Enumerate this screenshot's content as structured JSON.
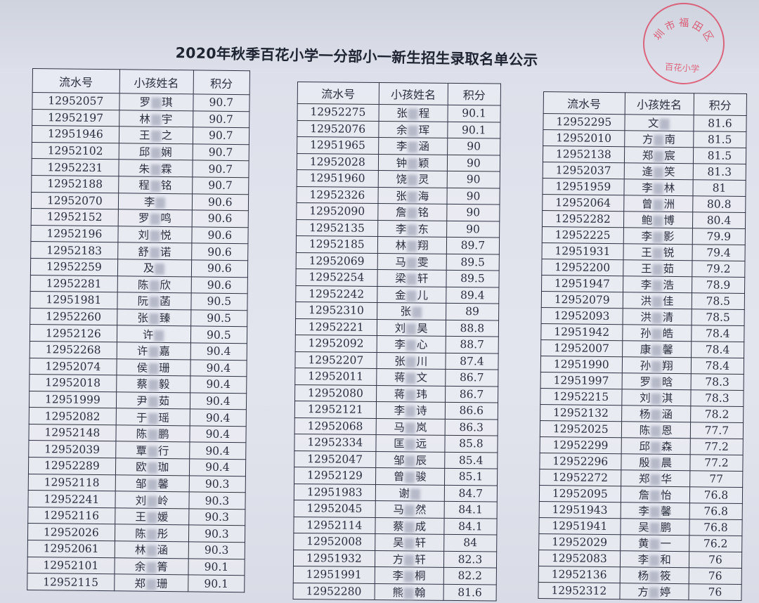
{
  "title": "2020年秋季百花小学一分部小一新生招生录取名单公示",
  "stamp": {
    "top_text": "圳市福田区",
    "bottom_text": "百花小学",
    "color": "#dc3c5a"
  },
  "headers": [
    "流水号",
    "小孩姓名",
    "积分"
  ],
  "tables": [
    {
      "rows": [
        [
          "12952057",
          "罗",
          "琪",
          "90.7"
        ],
        [
          "12952197",
          "林",
          "宇",
          "90.7"
        ],
        [
          "12951946",
          "王",
          "之",
          "90.7"
        ],
        [
          "12952102",
          "邱",
          "娴",
          "90.7"
        ],
        [
          "12952231",
          "朱",
          "霖",
          "90.7"
        ],
        [
          "12952188",
          "程",
          "铭",
          "90.7"
        ],
        [
          "12952070",
          "李",
          "",
          "90.6"
        ],
        [
          "12952152",
          "罗",
          "鸣",
          "90.6"
        ],
        [
          "12952196",
          "刘",
          "悦",
          "90.6"
        ],
        [
          "12952183",
          "舒",
          "诺",
          "90.6"
        ],
        [
          "12952259",
          "及",
          "",
          "90.6"
        ],
        [
          "12952281",
          "陈",
          "欣",
          "90.6"
        ],
        [
          "12951981",
          "阮",
          "菡",
          "90.5"
        ],
        [
          "12952260",
          "张",
          "臻",
          "90.5"
        ],
        [
          "12952126",
          "许",
          "",
          "90.5"
        ],
        [
          "12952268",
          "许",
          "嘉",
          "90.4"
        ],
        [
          "12952074",
          "侯",
          "珊",
          "90.4"
        ],
        [
          "12952018",
          "蔡",
          "毅",
          "90.4"
        ],
        [
          "12951999",
          "尹",
          "茹",
          "90.4"
        ],
        [
          "12952082",
          "于",
          "瑶",
          "90.4"
        ],
        [
          "12952148",
          "陈",
          "鹏",
          "90.4"
        ],
        [
          "12952039",
          "覃",
          "行",
          "90.4"
        ],
        [
          "12952289",
          "欧",
          "珈",
          "90.4"
        ],
        [
          "12952118",
          "邹",
          "馨",
          "90.3"
        ],
        [
          "12952241",
          "刘",
          "岭",
          "90.3"
        ],
        [
          "12952116",
          "王",
          "媛",
          "90.3"
        ],
        [
          "12952026",
          "陈",
          "彤",
          "90.3"
        ],
        [
          "12952061",
          "林",
          "涵",
          "90.3"
        ],
        [
          "12952101",
          "余",
          "箐",
          "90.1"
        ],
        [
          "12952115",
          "郑",
          "珊",
          "90.1"
        ]
      ]
    },
    {
      "rows": [
        [
          "12952275",
          "张",
          "程",
          "90.1"
        ],
        [
          "12952076",
          "余",
          "珲",
          "90.1"
        ],
        [
          "12951965",
          "李",
          "涵",
          "90"
        ],
        [
          "12952028",
          "钟",
          "颖",
          "90"
        ],
        [
          "12951960",
          "饶",
          "灵",
          "90"
        ],
        [
          "12952326",
          "张",
          "海",
          "90"
        ],
        [
          "12952090",
          "詹",
          "铭",
          "90"
        ],
        [
          "12952135",
          "李",
          "东",
          "90"
        ],
        [
          "12952185",
          "林",
          "翔",
          "89.7"
        ],
        [
          "12952069",
          "马",
          "雯",
          "89.5"
        ],
        [
          "12952254",
          "梁",
          "轩",
          "89.5"
        ],
        [
          "12952242",
          "金",
          "儿",
          "89.4"
        ],
        [
          "12952310",
          "张",
          "",
          "89"
        ],
        [
          "12952221",
          "刘",
          "昊",
          "88.8"
        ],
        [
          "12952092",
          "李",
          "心",
          "88.7"
        ],
        [
          "12952207",
          "张",
          "川",
          "87.4"
        ],
        [
          "12952011",
          "蒋",
          "文",
          "86.7"
        ],
        [
          "12952080",
          "蒋",
          "玮",
          "86.7"
        ],
        [
          "12952121",
          "李",
          "诗",
          "86.6"
        ],
        [
          "12952068",
          "马",
          "岚",
          "86.3"
        ],
        [
          "12952334",
          "匡",
          "远",
          "85.8"
        ],
        [
          "12952047",
          "邹",
          "辰",
          "85.4"
        ],
        [
          "12952129",
          "曾",
          "骏",
          "85.1"
        ],
        [
          "12951983",
          "谢",
          "",
          "84.7"
        ],
        [
          "12952045",
          "马",
          "然",
          "84.1"
        ],
        [
          "12952114",
          "蔡",
          "成",
          "84.1"
        ],
        [
          "12952008",
          "吴",
          "轩",
          "84"
        ],
        [
          "12951932",
          "方",
          "轩",
          "82.3"
        ],
        [
          "12951991",
          "李",
          "桐",
          "82.2"
        ],
        [
          "12952280",
          "熊",
          "翰",
          "81.6"
        ]
      ]
    },
    {
      "rows": [
        [
          "12952295",
          "文",
          "",
          "81.6"
        ],
        [
          "12952010",
          "方",
          "南",
          "81.5"
        ],
        [
          "12952138",
          "郑",
          "宸",
          "81.5"
        ],
        [
          "12952037",
          "逄",
          "笑",
          "81.3"
        ],
        [
          "12951959",
          "李",
          "林",
          "81"
        ],
        [
          "12952064",
          "曾",
          "洲",
          "80.8"
        ],
        [
          "12952282",
          "鲍",
          "博",
          "80.4"
        ],
        [
          "12952225",
          "李",
          "影",
          "79.9"
        ],
        [
          "12951931",
          "王",
          "锐",
          "79.4"
        ],
        [
          "12952200",
          "王",
          "茹",
          "79.2"
        ],
        [
          "12951947",
          "李",
          "浩",
          "78.9"
        ],
        [
          "12952079",
          "洪",
          "佳",
          "78.5"
        ],
        [
          "12952093",
          "洪",
          "清",
          "78.5"
        ],
        [
          "12951942",
          "孙",
          "皓",
          "78.4"
        ],
        [
          "12952007",
          "康",
          "馨",
          "78.4"
        ],
        [
          "12951990",
          "孙",
          "翔",
          "78.4"
        ],
        [
          "12951997",
          "罗",
          "晗",
          "78.3"
        ],
        [
          "12952215",
          "刘",
          "淇",
          "78.3"
        ],
        [
          "12952132",
          "杨",
          "涵",
          "78.2"
        ],
        [
          "12952025",
          "陈",
          "恩",
          "77.7"
        ],
        [
          "12952299",
          "邱",
          "森",
          "77.2"
        ],
        [
          "12952296",
          "殷",
          "晨",
          "77.2"
        ],
        [
          "12952272",
          "郑",
          "华",
          "77"
        ],
        [
          "12952095",
          "詹",
          "怡",
          "76.8"
        ],
        [
          "12951943",
          "李",
          "馨",
          "76.8"
        ],
        [
          "12951941",
          "吴",
          "鹏",
          "76.8"
        ],
        [
          "12952029",
          "黄",
          "一",
          "76.2"
        ],
        [
          "12952083",
          "李",
          "和",
          "76"
        ],
        [
          "12952136",
          "杨",
          "筱",
          "76"
        ],
        [
          "12952312",
          "方",
          "婷",
          "76"
        ]
      ]
    }
  ]
}
